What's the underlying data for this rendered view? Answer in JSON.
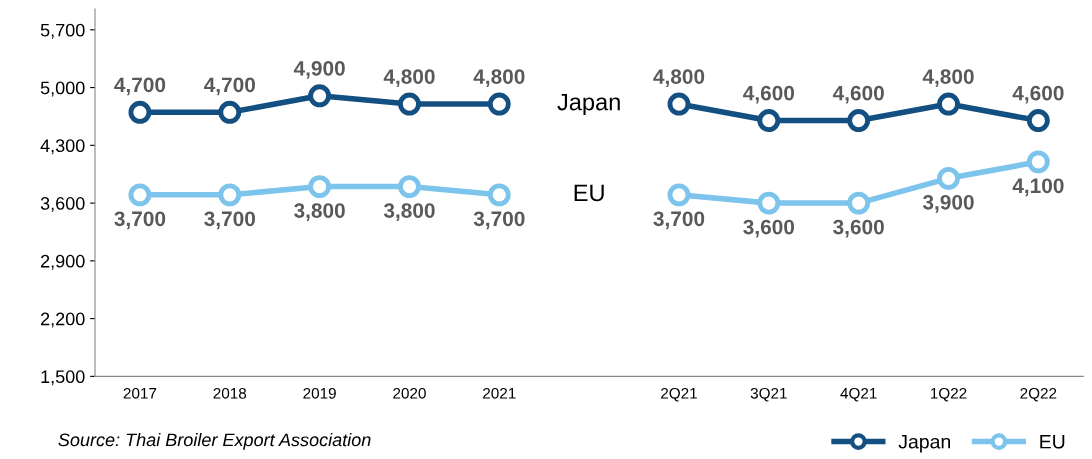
{
  "chart_data": {
    "type": "line",
    "categories": [
      "2017",
      "2018",
      "2019",
      "2020",
      "2021",
      null,
      "2Q21",
      "3Q21",
      "4Q21",
      "1Q22",
      "2Q22"
    ],
    "series": [
      {
        "name": "Japan",
        "color": "#134f80",
        "values": [
          4700,
          4700,
          4900,
          4800,
          4800,
          null,
          4800,
          4600,
          4600,
          4800,
          4600
        ],
        "value_labels": [
          "4,700",
          "4,700",
          "4,900",
          "4,800",
          "4,800",
          null,
          "4,800",
          "4,600",
          "4,600",
          "4,800",
          "4,600"
        ]
      },
      {
        "name": "EU",
        "color": "#7cc4ec",
        "values": [
          3700,
          3700,
          3800,
          3800,
          3700,
          null,
          3700,
          3600,
          3600,
          3900,
          4100
        ],
        "value_labels": [
          "3,700",
          "3,700",
          "3,800",
          "3,800",
          "3,700",
          null,
          "3,700",
          "3,600",
          "3,600",
          "3,900",
          "4,100"
        ]
      }
    ],
    "ylim": [
      1500,
      5950
    ],
    "yticks": [
      {
        "value": 1500,
        "label": "1,500"
      },
      {
        "value": 2200,
        "label": "2,200"
      },
      {
        "value": 2900,
        "label": "2,900"
      },
      {
        "value": 3600,
        "label": "3,600"
      },
      {
        "value": 4300,
        "label": "4,300"
      },
      {
        "value": 5000,
        "label": "5,000"
      },
      {
        "value": 5700,
        "label": "5,700"
      }
    ],
    "marker": "circle",
    "line_style": "solid",
    "grid": false,
    "legend": "bottom right",
    "annotations": [
      "Source: Thai Broiler Export Association"
    ]
  }
}
